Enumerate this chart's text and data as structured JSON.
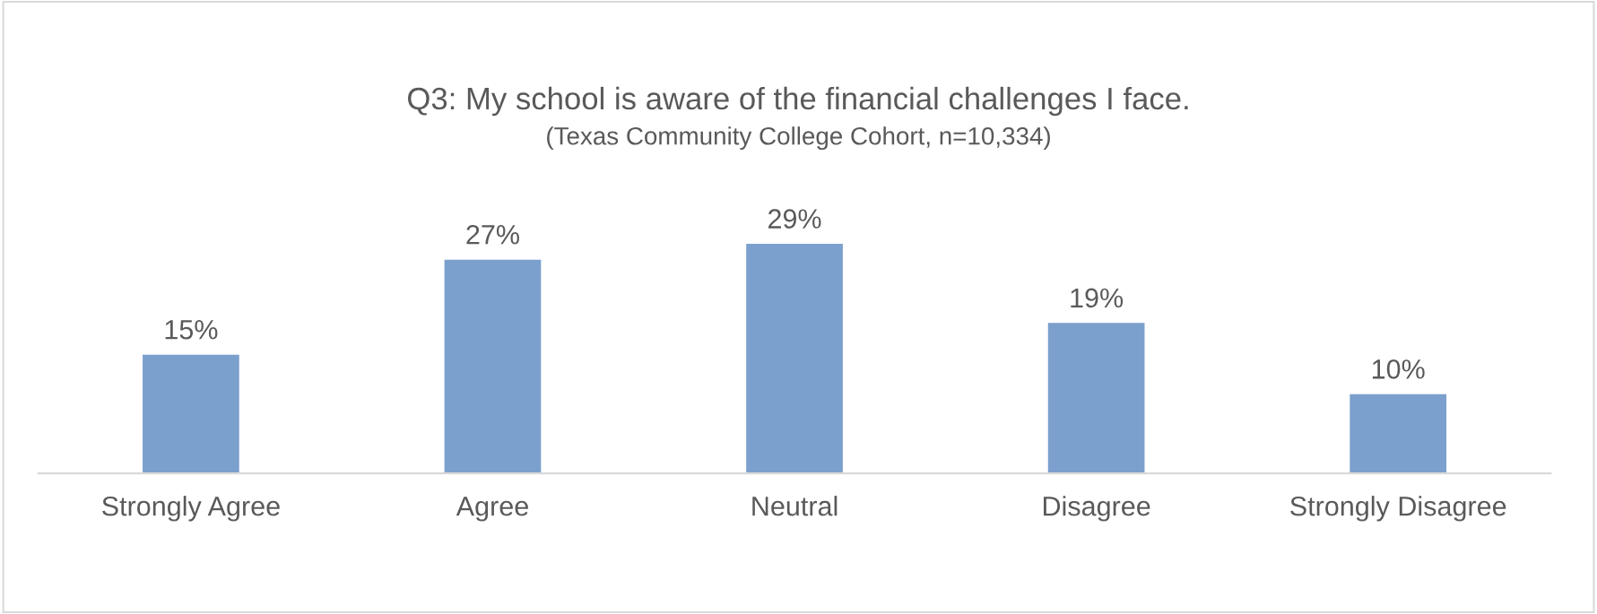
{
  "chart_data": {
    "type": "bar",
    "title": "Q3: My school is aware of the financial challenges I face.",
    "subtitle": "(Texas Community College Cohort, n=10,334)",
    "categories": [
      "Strongly Agree",
      "Agree",
      "Neutral",
      "Disagree",
      "Strongly Disagree"
    ],
    "values": [
      15,
      27,
      29,
      19,
      10
    ],
    "value_labels": [
      "15%",
      "27%",
      "29%",
      "19%",
      "10%"
    ],
    "color": "#7ba0cd",
    "tick_labels": "x"
  }
}
